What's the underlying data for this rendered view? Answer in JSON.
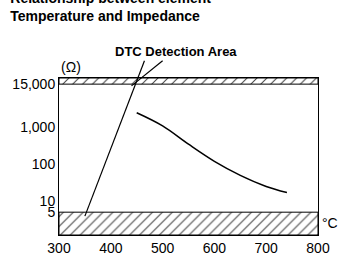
{
  "chart_data": {
    "type": "line",
    "title": "Relationship between element\nTemperature and Impedance",
    "annotations": [
      "DTC Detection Area"
    ],
    "x_label": "°C",
    "y_label": "(Ω)",
    "x": [
      450,
      500,
      550,
      600,
      650,
      700,
      740
    ],
    "values": [
      2500,
      1100,
      350,
      120,
      50,
      25,
      17
    ],
    "color": "#000000",
    "detection_limits": {
      "low": 5,
      "high": 15000
    },
    "xlim": [
      300,
      800
    ],
    "xticks": [
      300,
      400,
      500,
      600,
      700,
      800
    ],
    "ylim": [
      1.2,
      22000
    ],
    "yticks": [
      5,
      10,
      100,
      {
        "value": 1000,
        "label": "1,000"
      },
      {
        "value": 15000,
        "label": "15,000"
      }
    ],
    "log": "y",
    "grid": false
  }
}
